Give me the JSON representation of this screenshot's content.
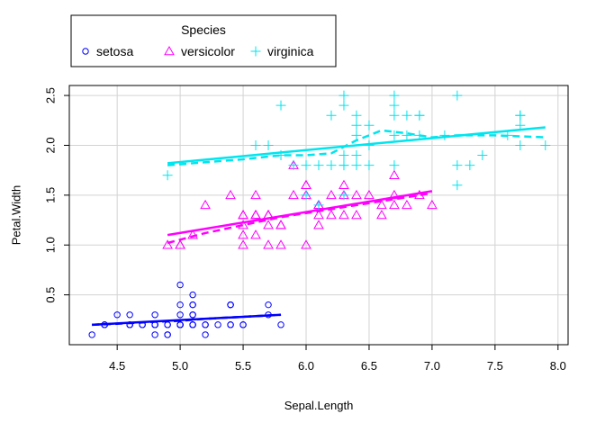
{
  "chart_data": {
    "type": "scatter",
    "xlabel": "Sepal.Length",
    "ylabel": "Petal.Width",
    "xlim": [
      4.12,
      8.08
    ],
    "ylim": [
      0.0,
      2.6
    ],
    "x_ticks": [
      "4.5",
      "5.0",
      "5.5",
      "6.0",
      "6.5",
      "7.0",
      "7.5",
      "8.0"
    ],
    "y_ticks": [
      "0.5",
      "1.0",
      "1.5",
      "2.0",
      "2.5"
    ],
    "grid": true,
    "legend": {
      "title": "Species",
      "placement": "top-left, outside plot",
      "entries": [
        "setosa",
        "versicolor",
        "virginica"
      ]
    },
    "series": [
      {
        "name": "setosa",
        "color": "#0000ff",
        "marker": "circle",
        "x": [
          5.1,
          4.9,
          4.7,
          4.6,
          5.0,
          5.4,
          4.6,
          5.0,
          4.4,
          4.9,
          5.4,
          4.8,
          4.8,
          4.3,
          5.8,
          5.7,
          5.4,
          5.1,
          5.7,
          5.1,
          5.4,
          5.1,
          4.6,
          5.1,
          4.8,
          5.0,
          5.0,
          5.2,
          5.2,
          4.7,
          4.8,
          5.4,
          5.2,
          5.5,
          4.9,
          5.0,
          5.5,
          4.9,
          4.4,
          5.1,
          5.0,
          4.5,
          4.4,
          5.0,
          5.1,
          4.8,
          5.1,
          4.6,
          5.3,
          5.0
        ],
        "y": [
          0.2,
          0.2,
          0.2,
          0.2,
          0.2,
          0.4,
          0.3,
          0.2,
          0.2,
          0.1,
          0.2,
          0.2,
          0.1,
          0.1,
          0.2,
          0.4,
          0.4,
          0.3,
          0.3,
          0.3,
          0.2,
          0.4,
          0.2,
          0.5,
          0.2,
          0.2,
          0.4,
          0.2,
          0.2,
          0.2,
          0.2,
          0.4,
          0.1,
          0.2,
          0.2,
          0.2,
          0.2,
          0.1,
          0.2,
          0.2,
          0.3,
          0.3,
          0.2,
          0.6,
          0.4,
          0.3,
          0.2,
          0.2,
          0.2,
          0.2
        ],
        "fit_line": {
          "x": [
            4.3,
            5.8
          ],
          "y": [
            0.2,
            0.3
          ]
        },
        "smooth_line": {
          "x": [
            4.3,
            4.5,
            4.8,
            5.0,
            5.2,
            5.5,
            5.8
          ],
          "y": [
            0.2,
            0.21,
            0.23,
            0.24,
            0.26,
            0.28,
            0.3
          ]
        }
      },
      {
        "name": "versicolor",
        "color": "#ff00ff",
        "marker": "triangle",
        "x": [
          7.0,
          6.4,
          6.9,
          5.5,
          6.5,
          5.7,
          6.3,
          4.9,
          6.6,
          5.2,
          5.0,
          5.9,
          6.0,
          6.1,
          5.6,
          6.7,
          5.6,
          5.8,
          6.2,
          5.6,
          5.9,
          6.1,
          6.3,
          6.1,
          6.4,
          6.6,
          6.8,
          6.7,
          6.0,
          5.7,
          5.5,
          5.5,
          5.8,
          6.0,
          5.4,
          6.0,
          6.7,
          6.3,
          5.6,
          5.5,
          5.5,
          6.1,
          5.8,
          5.0,
          5.6,
          5.7,
          5.7,
          6.2,
          5.1,
          5.7
        ],
        "y": [
          1.4,
          1.5,
          1.5,
          1.3,
          1.5,
          1.3,
          1.6,
          1.0,
          1.3,
          1.4,
          1.0,
          1.5,
          1.0,
          1.4,
          1.3,
          1.4,
          1.5,
          1.0,
          1.5,
          1.1,
          1.8,
          1.3,
          1.5,
          1.2,
          1.3,
          1.4,
          1.4,
          1.7,
          1.5,
          1.0,
          1.1,
          1.0,
          1.2,
          1.6,
          1.5,
          1.6,
          1.5,
          1.3,
          1.3,
          1.3,
          1.2,
          1.4,
          1.2,
          1.0,
          1.3,
          1.2,
          1.3,
          1.3,
          1.1,
          1.3
        ],
        "fit_line": {
          "x": [
            4.9,
            7.0
          ],
          "y": [
            1.1,
            1.54
          ]
        },
        "smooth_line": {
          "x": [
            4.9,
            5.2,
            5.5,
            5.8,
            6.1,
            6.4,
            6.7,
            7.0
          ],
          "y": [
            1.02,
            1.12,
            1.2,
            1.28,
            1.34,
            1.4,
            1.46,
            1.52
          ]
        }
      },
      {
        "name": "virginica",
        "color": "#00e5ee",
        "marker": "plus",
        "x": [
          6.3,
          5.8,
          7.1,
          6.3,
          6.5,
          7.6,
          4.9,
          7.3,
          6.7,
          7.2,
          6.5,
          6.4,
          6.8,
          5.7,
          5.8,
          6.4,
          6.5,
          7.7,
          7.7,
          6.0,
          6.9,
          5.6,
          7.7,
          6.3,
          6.7,
          7.2,
          6.2,
          6.1,
          6.4,
          7.2,
          7.4,
          7.9,
          6.4,
          6.3,
          6.1,
          7.7,
          6.3,
          6.4,
          6.0,
          6.9,
          6.7,
          6.9,
          5.8,
          6.8,
          6.7,
          6.7,
          6.3,
          6.5,
          6.2,
          5.9
        ],
        "y": [
          2.5,
          1.9,
          2.1,
          1.8,
          2.2,
          2.1,
          1.7,
          1.8,
          1.8,
          2.5,
          2.0,
          1.9,
          2.1,
          2.0,
          2.4,
          2.3,
          1.8,
          2.2,
          2.3,
          1.5,
          2.3,
          2.0,
          2.0,
          1.8,
          2.1,
          1.8,
          1.8,
          1.8,
          2.1,
          1.6,
          1.9,
          2.0,
          2.2,
          1.5,
          1.4,
          2.3,
          2.4,
          1.8,
          1.8,
          2.1,
          2.4,
          2.3,
          1.9,
          2.3,
          2.5,
          2.3,
          1.9,
          2.0,
          2.3,
          1.8
        ],
        "fit_line": {
          "x": [
            4.9,
            7.9
          ],
          "y": [
            1.82,
            2.18
          ]
        },
        "smooth_line": {
          "x": [
            4.9,
            5.2,
            5.5,
            5.8,
            6.0,
            6.2,
            6.4,
            6.6,
            6.8,
            7.0,
            7.2,
            7.5,
            7.9
          ],
          "y": [
            1.8,
            1.83,
            1.86,
            1.9,
            1.9,
            1.92,
            2.05,
            2.15,
            2.12,
            2.08,
            2.1,
            2.1,
            2.08
          ]
        }
      }
    ]
  }
}
